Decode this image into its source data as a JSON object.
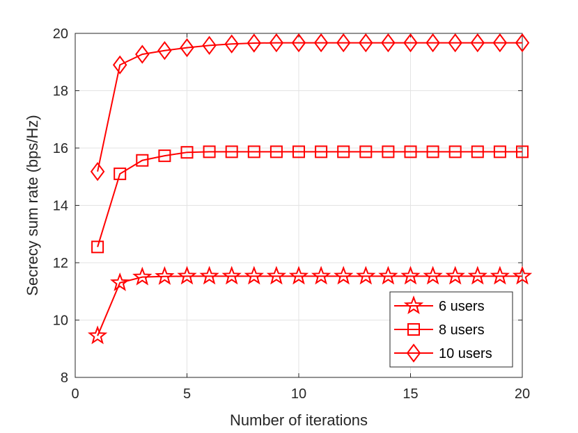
{
  "chart_data": {
    "type": "line",
    "xlabel": "Number of iterations",
    "ylabel": "Secrecy sum rate (bps/Hz)",
    "xlim": [
      0,
      20
    ],
    "ylim": [
      8,
      20
    ],
    "xticks": [
      0,
      5,
      10,
      15,
      20
    ],
    "yticks": [
      8,
      10,
      12,
      14,
      16,
      18,
      20
    ],
    "grid": true,
    "legend_position": "bottom-right",
    "color": "#ff0000",
    "x": [
      1,
      2,
      3,
      4,
      5,
      6,
      7,
      8,
      9,
      10,
      11,
      12,
      13,
      14,
      15,
      16,
      17,
      18,
      19,
      20
    ],
    "series": [
      {
        "name": "6 users",
        "marker": "star",
        "values": [
          9.45,
          11.3,
          11.5,
          11.52,
          11.53,
          11.53,
          11.53,
          11.53,
          11.53,
          11.53,
          11.53,
          11.53,
          11.53,
          11.53,
          11.53,
          11.53,
          11.53,
          11.53,
          11.53,
          11.53
        ]
      },
      {
        "name": "8 users",
        "marker": "square",
        "values": [
          12.55,
          15.1,
          15.57,
          15.73,
          15.85,
          15.87,
          15.87,
          15.87,
          15.87,
          15.87,
          15.87,
          15.87,
          15.87,
          15.87,
          15.87,
          15.87,
          15.87,
          15.87,
          15.87,
          15.87
        ]
      },
      {
        "name": "10 users",
        "marker": "diamond",
        "values": [
          15.18,
          18.9,
          19.27,
          19.4,
          19.5,
          19.58,
          19.63,
          19.66,
          19.67,
          19.67,
          19.67,
          19.67,
          19.67,
          19.67,
          19.67,
          19.67,
          19.67,
          19.67,
          19.67,
          19.67
        ]
      }
    ]
  }
}
